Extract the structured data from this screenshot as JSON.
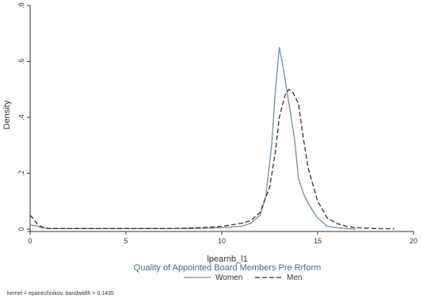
{
  "chart_data": {
    "type": "line",
    "title": "Quality of Appointed Board Members Pre Rrform",
    "xlabel": "lpearnb_l1",
    "ylabel": "Density",
    "xlim": [
      0,
      20
    ],
    "ylim": [
      0,
      0.8
    ],
    "x_ticks": [
      0,
      5,
      10,
      15,
      20
    ],
    "x_tick_labels": [
      "0",
      "5",
      "10",
      "15",
      "20"
    ],
    "y_ticks": [
      0,
      0.2,
      0.4,
      0.6,
      0.8
    ],
    "y_tick_labels": [
      "0",
      ".2",
      ".4",
      ".6",
      ".8"
    ],
    "grid": false,
    "legend_position": "bottom",
    "note": "kernel = epanechnikov, bandwidth = 0.1435",
    "colors": {
      "women": "#6f8fae",
      "men": "#333333",
      "title": "#4a6a8a"
    },
    "series": [
      {
        "name": "Women",
        "style": "solid",
        "x": [
          0,
          0.3,
          0.6,
          1.0,
          3,
          5,
          7,
          8.5,
          10,
          11,
          11.5,
          12,
          12.3,
          12.6,
          12.8,
          13.0,
          13.2,
          13.5,
          13.8,
          14.0,
          14.3,
          14.7,
          15.0,
          15.5,
          16.0,
          16.5,
          17.0
        ],
        "y": [
          0.015,
          0.012,
          0.005,
          0.002,
          0.002,
          0.002,
          0.002,
          0.002,
          0.005,
          0.01,
          0.02,
          0.05,
          0.12,
          0.3,
          0.5,
          0.65,
          0.58,
          0.45,
          0.32,
          0.18,
          0.12,
          0.07,
          0.04,
          0.01,
          0.005,
          0.002,
          0.0
        ]
      },
      {
        "name": "Men",
        "style": "dashed",
        "x": [
          0,
          0.2,
          0.4,
          0.7,
          1.0,
          3,
          5,
          7,
          8,
          9,
          10,
          11,
          11.5,
          12,
          12.5,
          12.8,
          13.0,
          13.3,
          13.5,
          13.7,
          14.0,
          14.2,
          14.5,
          15.0,
          15.5,
          16.0,
          16.5,
          17.0,
          18.0,
          19.0
        ],
        "y": [
          0.05,
          0.035,
          0.015,
          0.005,
          0.002,
          0.002,
          0.002,
          0.002,
          0.003,
          0.005,
          0.01,
          0.02,
          0.03,
          0.06,
          0.15,
          0.28,
          0.4,
          0.48,
          0.5,
          0.49,
          0.45,
          0.35,
          0.22,
          0.1,
          0.04,
          0.02,
          0.01,
          0.005,
          0.002,
          0.001
        ]
      }
    ]
  }
}
